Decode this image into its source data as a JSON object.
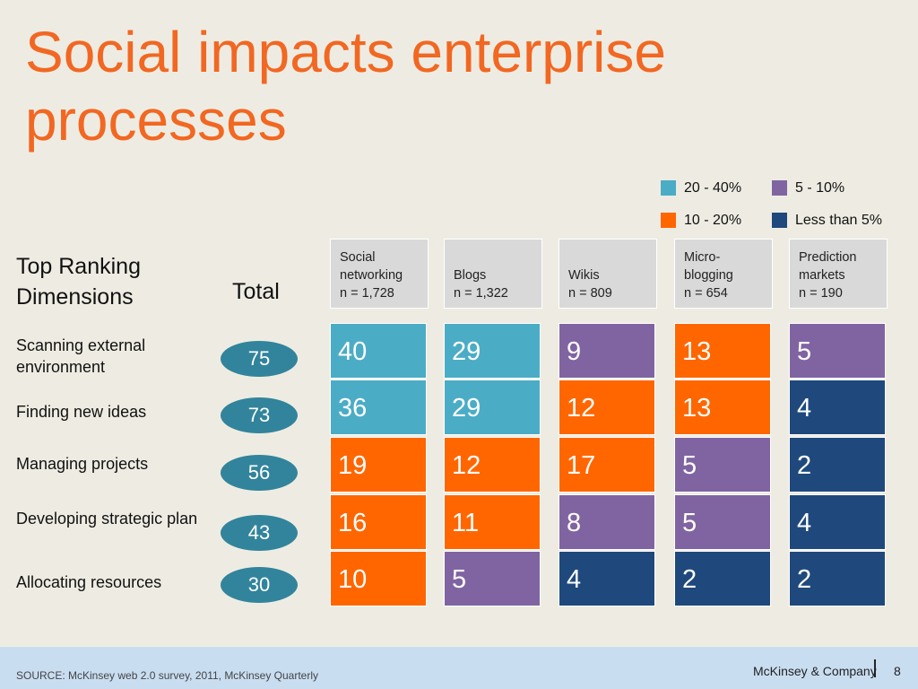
{
  "slide": {
    "title": "Social impacts enterprise processes",
    "dimensions_heading": "Top Ranking Dimensions",
    "total_heading": "Total",
    "footer": {
      "source": "SOURCE: McKinsey web 2.0 survey, 2011, McKinsey Quarterly",
      "brand": "McKinsey & Company",
      "page_number": "8"
    }
  },
  "colors": {
    "title": "#F26722",
    "cat_20_40": "#4BACC6",
    "cat_10_20": "#FF6600",
    "cat_5_10": "#8064A2",
    "cat_lt_5": "#1F497D",
    "total_oval": "#31849B",
    "header_box": "#D9D9D9",
    "footer_bar": "#C9DDF1",
    "background": "#EEECE2"
  },
  "chart_data": {
    "type": "table",
    "legend": [
      {
        "key": "cat_20_40",
        "label": "20 - 40%"
      },
      {
        "key": "cat_5_10",
        "label": "5 - 10%"
      },
      {
        "key": "cat_10_20",
        "label": "10 - 20%"
      },
      {
        "key": "cat_lt_5",
        "label": "Less than 5%"
      }
    ],
    "columns": [
      {
        "name": "Social\nnetworking",
        "n": "n = 1,728"
      },
      {
        "name": "Blogs",
        "n": "n = 1,322"
      },
      {
        "name": "Wikis",
        "n": "n = 809"
      },
      {
        "name": "Micro-\nblogging",
        "n": "n = 654"
      },
      {
        "name": "Prediction\nmarkets",
        "n": "n = 190"
      }
    ],
    "rows": [
      {
        "label": "Scanning external environment",
        "total": "75",
        "values": [
          "40",
          "29",
          "9",
          "13",
          "5"
        ],
        "categories": [
          "cat_20_40",
          "cat_20_40",
          "cat_5_10",
          "cat_10_20",
          "cat_5_10"
        ]
      },
      {
        "label": "Finding new ideas",
        "total": "73",
        "values": [
          "36",
          "29",
          "12",
          "13",
          "4"
        ],
        "categories": [
          "cat_20_40",
          "cat_20_40",
          "cat_10_20",
          "cat_10_20",
          "cat_lt_5"
        ]
      },
      {
        "label": "Managing projects",
        "total": "56",
        "values": [
          "19",
          "12",
          "17",
          "5",
          "2"
        ],
        "categories": [
          "cat_10_20",
          "cat_10_20",
          "cat_10_20",
          "cat_5_10",
          "cat_lt_5"
        ]
      },
      {
        "label": "Developing strategic plan",
        "total": "43",
        "values": [
          "16",
          "11",
          "8",
          "5",
          "4"
        ],
        "categories": [
          "cat_10_20",
          "cat_10_20",
          "cat_5_10",
          "cat_5_10",
          "cat_lt_5"
        ]
      },
      {
        "label": "Allocating resources",
        "total": "30",
        "values": [
          "10",
          "5",
          "4",
          "2",
          "2"
        ],
        "categories": [
          "cat_10_20",
          "cat_5_10",
          "cat_lt_5",
          "cat_lt_5",
          "cat_lt_5"
        ]
      }
    ]
  }
}
